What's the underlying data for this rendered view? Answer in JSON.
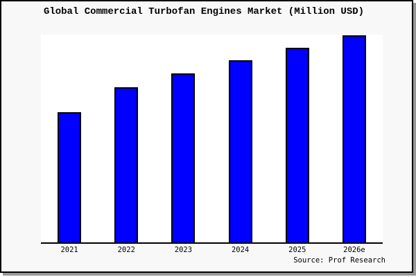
{
  "chart": {
    "title": "Global Commercial Turbofan Engines Market (Million USD)",
    "source": "Source: Prof Research"
  },
  "chart_data": {
    "type": "bar",
    "title": "Global Commercial Turbofan Engines Market (Million USD)",
    "categories": [
      "2021",
      "2022",
      "2023",
      "2024",
      "2025",
      "2026e"
    ],
    "values": [
      188,
      224,
      244,
      263,
      281,
      299
    ],
    "xlabel": "",
    "ylabel": "",
    "ylim": [
      0,
      300
    ],
    "yaxis_visible": false,
    "grid": false,
    "legend": false,
    "annotations": [
      "Source: Prof Research"
    ],
    "bar_color": "#0000FF",
    "bar_border_color": "#000000"
  },
  "colors": {
    "card_background": "#F8F8F8",
    "plot_background": "#FFFFFF",
    "frame_border": "#000000",
    "shadow": "#989898",
    "bar_fill": "#0000FF",
    "text": "#000000"
  }
}
